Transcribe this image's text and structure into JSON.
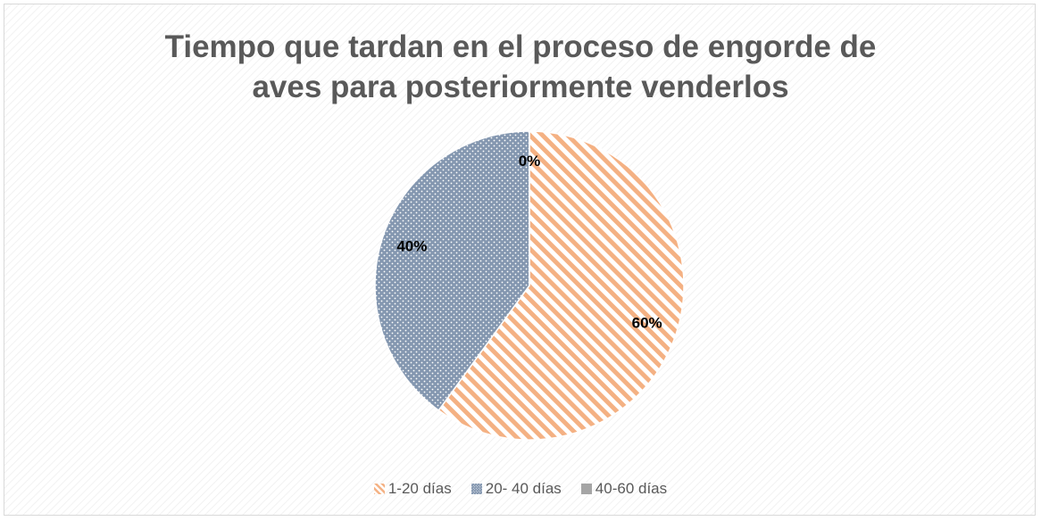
{
  "chart_data": {
    "type": "pie",
    "title": "Tiempo que tardan en el proceso de engorde de aves para posteriormente venderlos",
    "categories": [
      "1-20 días",
      "20- 40 días",
      "40-60 días"
    ],
    "values": [
      60,
      40,
      0
    ],
    "value_labels": [
      "60%",
      "40%",
      "0%"
    ],
    "colors": [
      "#f4b183",
      "#8497b0",
      "#a5a5a5"
    ],
    "legend": "bottom"
  }
}
